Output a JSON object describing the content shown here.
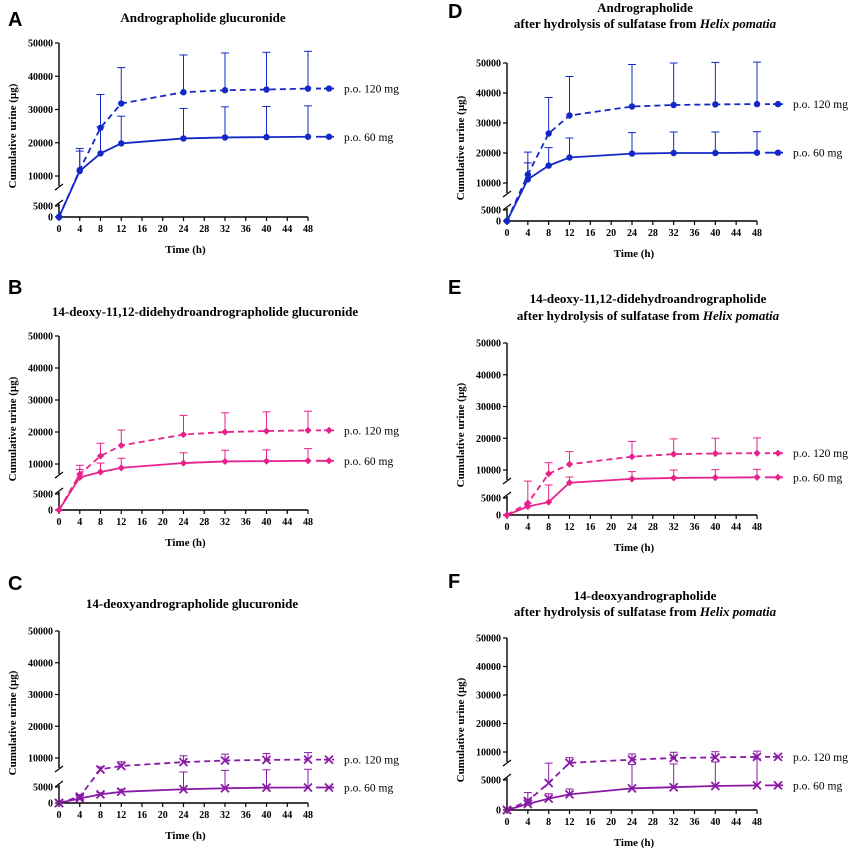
{
  "figure": {
    "y_axis_label": "Cumulative urine (µg)",
    "x_axis_label": "Time (h)",
    "x_ticks": [
      "0",
      "4",
      "8",
      "12",
      "16",
      "20",
      "24",
      "28",
      "32",
      "36",
      "40",
      "44",
      "48"
    ],
    "y_ticks": [
      "0",
      "5000",
      "10000",
      "20000",
      "30000",
      "40000",
      "50000"
    ],
    "legend_120": "p.o. 120 mg",
    "legend_60": "p.o. 60 mg"
  },
  "colors": {
    "blue": "#1428c8",
    "pink": "#e8228c",
    "purple": "#8a1aa6"
  },
  "chart_data": [
    {
      "type": "line",
      "letter": "A",
      "title_lines": [
        [
          {
            "text": "Andrographolide glucuronide",
            "italic": false
          }
        ]
      ],
      "marker": "circle",
      "color": "blue",
      "xlabel": "Time (h)",
      "ylabel": "Cumulative urine (µg)",
      "x": [
        0,
        4,
        8,
        12,
        24,
        32,
        40,
        48
      ],
      "ylim": [
        0,
        50000
      ],
      "y_axis_break": [
        5000,
        10000
      ],
      "series": [
        {
          "name": "p.o. 120 mg",
          "dashed": true,
          "values": [
            0,
            11800,
            24500,
            31800,
            35200,
            35800,
            36000,
            36300
          ],
          "error_up": [
            0,
            6500,
            10000,
            10800,
            11200,
            11200,
            11200,
            11200
          ]
        },
        {
          "name": "p.o. 60 mg",
          "dashed": false,
          "values": [
            0,
            11500,
            16800,
            19800,
            21300,
            21600,
            21700,
            21800
          ],
          "error_up": [
            0,
            6000,
            8000,
            8200,
            9000,
            9200,
            9200,
            9300
          ]
        }
      ]
    },
    {
      "type": "line",
      "letter": "B",
      "title_lines": [
        [
          {
            "text": "14-deoxy-11,12-didehydroandrographolide glucuronide",
            "italic": false
          }
        ]
      ],
      "marker": "diamond",
      "color": "pink",
      "xlabel": "Time (h)",
      "ylabel": "Cumulative urine (µg)",
      "x": [
        0,
        4,
        8,
        12,
        24,
        32,
        40,
        48
      ],
      "ylim": [
        0,
        50000
      ],
      "y_axis_break": [
        5000,
        10000
      ],
      "series": [
        {
          "name": "p.o. 120 mg",
          "dashed": true,
          "values": [
            0,
            6800,
            12500,
            15800,
            19200,
            20000,
            20300,
            20500
          ],
          "error_up": [
            0,
            2800,
            4000,
            4800,
            6000,
            6000,
            6000,
            6000
          ]
        },
        {
          "name": "p.o. 60 mg",
          "dashed": false,
          "values": [
            0,
            5800,
            7500,
            8800,
            10300,
            10800,
            10900,
            11000
          ],
          "error_up": [
            0,
            2500,
            2800,
            3000,
            3200,
            3500,
            3500,
            3800
          ]
        }
      ]
    },
    {
      "type": "line",
      "letter": "C",
      "title_lines": [
        [
          {
            "text": "14-deoxyandrographolide glucuronide",
            "italic": false
          }
        ]
      ],
      "marker": "cross",
      "color": "purple",
      "xlabel": "Time (h)",
      "ylabel": "Cumulative urine (µg)",
      "x": [
        0,
        4,
        8,
        12,
        24,
        32,
        40,
        48
      ],
      "ylim": [
        0,
        50000
      ],
      "y_axis_break": [
        5000,
        10000
      ],
      "series": [
        {
          "name": "p.o. 120 mg",
          "dashed": true,
          "values": [
            0,
            2000,
            6400,
            7500,
            8700,
            9200,
            9400,
            9500
          ],
          "error_up": [
            0,
            600,
            800,
            1300,
            2000,
            2000,
            2000,
            2200
          ]
        },
        {
          "name": "p.o. 60 mg",
          "dashed": false,
          "values": [
            0,
            1400,
            2700,
            3500,
            4300,
            4600,
            4800,
            4850
          ],
          "error_up": [
            0,
            400,
            500,
            800,
            1300,
            1500,
            1500,
            1600
          ]
        }
      ]
    },
    {
      "type": "line",
      "letter": "D",
      "title_lines": [
        [
          {
            "text": "Andrographolide",
            "italic": false
          }
        ],
        [
          {
            "text": "after hydrolysis of sulfatase from ",
            "italic": false
          },
          {
            "text": "Helix pomatia",
            "italic": true
          }
        ]
      ],
      "marker": "circle",
      "color": "blue",
      "xlabel": "Time (h)",
      "ylabel": "Cumulative urine (µg)",
      "x": [
        0,
        4,
        8,
        12,
        24,
        32,
        40,
        48
      ],
      "ylim": [
        0,
        50000
      ],
      "y_axis_break": [
        5000,
        10000
      ],
      "series": [
        {
          "name": "p.o. 120 mg",
          "dashed": true,
          "values": [
            0,
            12800,
            26500,
            32500,
            35500,
            36000,
            36200,
            36300
          ],
          "error_up": [
            0,
            7500,
            12000,
            13000,
            14000,
            14000,
            14000,
            14000
          ]
        },
        {
          "name": "p.o. 60 mg",
          "dashed": false,
          "values": [
            0,
            11200,
            15800,
            18500,
            19800,
            20000,
            20000,
            20100
          ],
          "error_up": [
            0,
            5500,
            6000,
            6500,
            7000,
            7000,
            7000,
            7000
          ]
        }
      ]
    },
    {
      "type": "line",
      "letter": "E",
      "title_lines": [
        [
          {
            "text": "14-deoxy-11,12-didehydroandrographolide",
            "italic": false
          }
        ],
        [
          {
            "text": "after hydrolysis of sulfatase from ",
            "italic": false
          },
          {
            "text": "Helix pomatia",
            "italic": true
          }
        ]
      ],
      "marker": "diamond",
      "color": "pink",
      "xlabel": "Time (h)",
      "ylabel": "Cumulative urine (µg)",
      "x": [
        0,
        4,
        8,
        12,
        24,
        32,
        40,
        48
      ],
      "ylim": [
        0,
        50000
      ],
      "y_axis_break": [
        5000,
        10000
      ],
      "series": [
        {
          "name": "p.o. 120 mg",
          "dashed": true,
          "values": [
            0,
            3500,
            8800,
            11800,
            14200,
            15000,
            15200,
            15300
          ],
          "error_up": [
            0,
            3000,
            3500,
            4000,
            4800,
            4800,
            4800,
            4800
          ]
        },
        {
          "name": "p.o. 60 mg",
          "dashed": false,
          "values": [
            0,
            2500,
            3800,
            6000,
            7200,
            7500,
            7600,
            7700
          ],
          "error_up": [
            0,
            1000,
            1500,
            1800,
            2300,
            2500,
            2500,
            2500
          ]
        }
      ]
    },
    {
      "type": "line",
      "letter": "F",
      "title_lines": [
        [
          {
            "text": "14-deoxyandrographolide",
            "italic": false
          }
        ],
        [
          {
            "text": "after hydrolysis of sulfatase from ",
            "italic": false
          },
          {
            "text": "Helix pomatia",
            "italic": true
          }
        ]
      ],
      "marker": "cross",
      "color": "purple",
      "xlabel": "Time (h)",
      "ylabel": "Cumulative urine (µg)",
      "x": [
        0,
        4,
        8,
        12,
        24,
        32,
        40,
        48
      ],
      "ylim": [
        0,
        50000
      ],
      "y_axis_break": [
        5000,
        10000
      ],
      "series": [
        {
          "name": "p.o. 120 mg",
          "dashed": true,
          "values": [
            0,
            1500,
            4500,
            6200,
            7300,
            7900,
            8100,
            8300
          ],
          "error_up": [
            0,
            1400,
            1600,
            1800,
            2000,
            2000,
            2000,
            2000
          ]
        },
        {
          "name": "p.o. 60 mg",
          "dashed": false,
          "values": [
            0,
            1000,
            1900,
            2600,
            3600,
            3800,
            4000,
            4100
          ],
          "error_up": [
            0,
            800,
            800,
            900,
            2000,
            2000,
            2500,
            3500
          ]
        }
      ]
    }
  ]
}
